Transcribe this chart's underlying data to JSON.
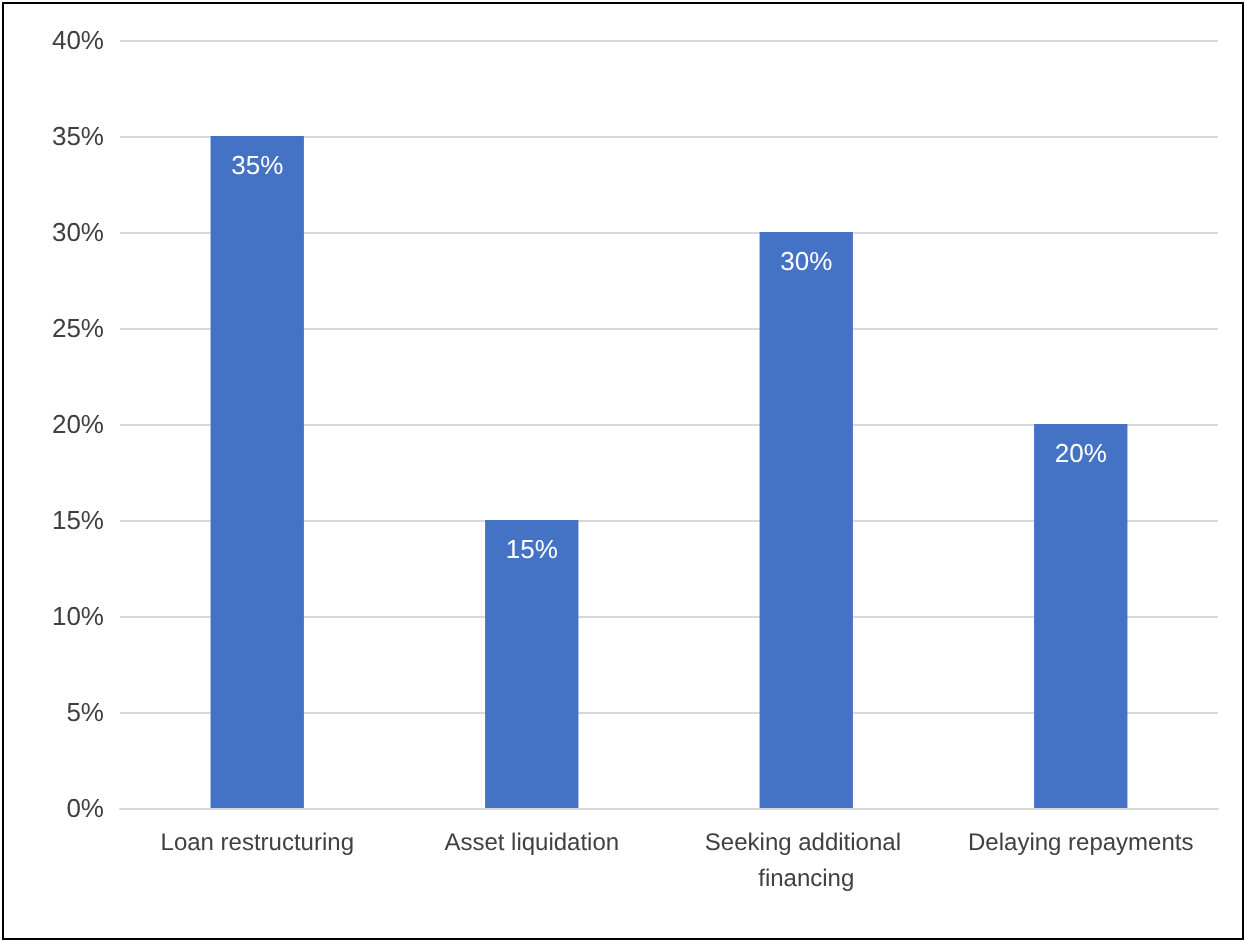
{
  "chart_data": {
    "type": "bar",
    "categories": [
      "Loan restructuring",
      "Asset liquidation",
      "Seeking additional financing",
      "Delaying repayments"
    ],
    "values": [
      35,
      15,
      30,
      20
    ],
    "color": "#4472c4",
    "value_labels": [
      "35%",
      "15%",
      "30%",
      "20%"
    ],
    "ylim": [
      0,
      40
    ],
    "yticks": [
      {
        "value": 0,
        "label": "0%"
      },
      {
        "value": 5,
        "label": "5%"
      },
      {
        "value": 10,
        "label": "10%"
      },
      {
        "value": 15,
        "label": "15%"
      },
      {
        "value": 20,
        "label": "20%"
      },
      {
        "value": 25,
        "label": "25%"
      },
      {
        "value": 30,
        "label": "30%"
      },
      {
        "value": 35,
        "label": "35%"
      },
      {
        "value": 40,
        "label": "40%"
      }
    ],
    "grid": true
  }
}
